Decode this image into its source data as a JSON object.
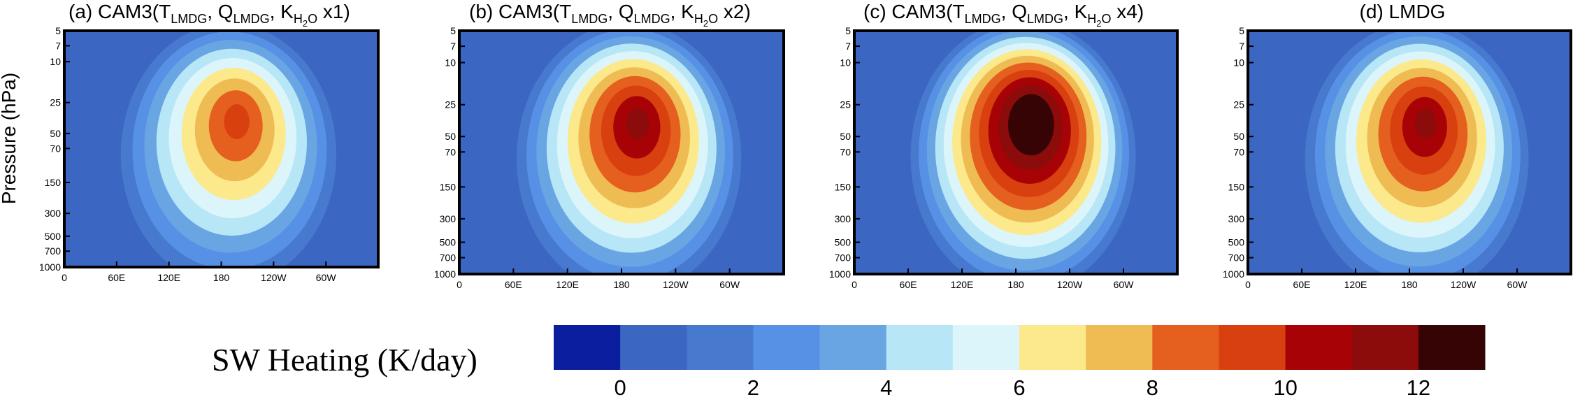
{
  "figure": {
    "ylabel": "Pressure (hPa)",
    "colorbar_label": "SW Heating (K/day)"
  },
  "chart_data": [
    {
      "type": "heatmap",
      "panel": "a",
      "title_parts": {
        "prefix": "(a) CAM3(T",
        "t_sub": "LMDG",
        "q": ", Q",
        "q_sub": "LMDG",
        "k": ", K",
        "k_sub": "H",
        "k_subsub": "2",
        "k_sub2": "O",
        "suffix": " x1)"
      },
      "x_ticks": [
        "0",
        "60E",
        "120E",
        "180",
        "120W",
        "60W"
      ],
      "y_ticks": [
        "5",
        "7",
        "10",
        "25",
        "50",
        "70",
        "150",
        "300",
        "500",
        "700",
        "1000"
      ],
      "xlim": [
        0,
        360
      ],
      "ylim": [
        1000,
        5
      ],
      "y_scale": "log",
      "y_tick_values": [
        5,
        7,
        10,
        25,
        50,
        70,
        150,
        300,
        500,
        700,
        1000
      ],
      "peak": {
        "lon": 195,
        "p": 40
      },
      "peak_heating": 9.2,
      "contour_levels": [
        1,
        2,
        3,
        4,
        5,
        6,
        7,
        8,
        9
      ]
    },
    {
      "type": "heatmap",
      "panel": "b",
      "title_parts": {
        "prefix": "(b) CAM3(T",
        "t_sub": "LMDG",
        "q": ", Q",
        "q_sub": "LMDG",
        "k": ", K",
        "k_sub": "H",
        "k_subsub": "2",
        "k_sub2": "O",
        "suffix": " x2)"
      },
      "x_ticks": [
        "0",
        "60E",
        "120E",
        "180",
        "120W",
        "60W"
      ],
      "y_ticks": [
        "5",
        "7",
        "10",
        "25",
        "50",
        "70",
        "150",
        "300",
        "500",
        "700",
        "1000"
      ],
      "xlim": [
        0,
        360
      ],
      "ylim": [
        1000,
        5
      ],
      "y_scale": "log",
      "y_tick_values": [
        5,
        7,
        10,
        25,
        50,
        70,
        150,
        300,
        500,
        700,
        1000
      ],
      "peak": {
        "lon": 195,
        "p": 40
      },
      "peak_heating": 11.2,
      "contour_levels": [
        1,
        2,
        3,
        4,
        5,
        6,
        7,
        8,
        9,
        10,
        11
      ]
    },
    {
      "type": "heatmap",
      "panel": "c",
      "title_parts": {
        "prefix": "(c) CAM3(T",
        "t_sub": "LMDG",
        "q": ", Q",
        "q_sub": "LMDG",
        "k": ", K",
        "k_sub": "H",
        "k_subsub": "2",
        "k_sub2": "O",
        "suffix": " x4)"
      },
      "x_ticks": [
        "0",
        "60E",
        "120E",
        "180",
        "120W",
        "60W"
      ],
      "y_ticks": [
        "5",
        "7",
        "10",
        "25",
        "50",
        "70",
        "150",
        "300",
        "500",
        "700",
        "1000"
      ],
      "xlim": [
        0,
        360
      ],
      "ylim": [
        1000,
        5
      ],
      "y_scale": "log",
      "y_tick_values": [
        5,
        7,
        10,
        25,
        50,
        70,
        150,
        300,
        500,
        700,
        1000
      ],
      "peak": {
        "lon": 195,
        "p": 38
      },
      "peak_heating": 13.5,
      "contour_levels": [
        1,
        2,
        3,
        4,
        5,
        6,
        7,
        8,
        9,
        10,
        11,
        12
      ]
    },
    {
      "type": "heatmap",
      "panel": "d",
      "title_parts": {
        "prefix": "(d) LMDG",
        "t_sub": "",
        "q": "",
        "q_sub": "",
        "k": "",
        "k_sub": "",
        "k_subsub": "",
        "k_sub2": "",
        "suffix": ""
      },
      "x_ticks": [
        "0",
        "60E",
        "120E",
        "180",
        "120W",
        "60W"
      ],
      "y_ticks": [
        "5",
        "7",
        "10",
        "25",
        "50",
        "70",
        "150",
        "300",
        "500",
        "700",
        "1000"
      ],
      "xlim": [
        0,
        360
      ],
      "ylim": [
        1000,
        5
      ],
      "y_scale": "log",
      "y_tick_values": [
        5,
        7,
        10,
        25,
        50,
        70,
        150,
        300,
        500,
        700,
        1000
      ],
      "peak": {
        "lon": 195,
        "p": 40
      },
      "peak_heating": 11.1,
      "contour_levels": [
        1,
        2,
        3,
        4,
        5,
        6,
        7,
        8,
        9,
        10,
        11
      ]
    }
  ],
  "colorbar": {
    "colors": [
      "#0b1e9e",
      "#3b66c2",
      "#4779ce",
      "#5791e6",
      "#6aa5e3",
      "#b7e6f7",
      "#dcf5fb",
      "#fbe98c",
      "#efbc54",
      "#e55f1f",
      "#d9400f",
      "#a70306",
      "#8c0b0b",
      "#360404"
    ],
    "bounds": [
      -1,
      0,
      1,
      2,
      3,
      4,
      5,
      6,
      7,
      8,
      9,
      10,
      11,
      12,
      13
    ],
    "tick_labels": [
      "0",
      "2",
      "4",
      "6",
      "8",
      "10",
      "12"
    ],
    "tick_values": [
      0,
      2,
      4,
      6,
      8,
      10,
      12
    ]
  }
}
